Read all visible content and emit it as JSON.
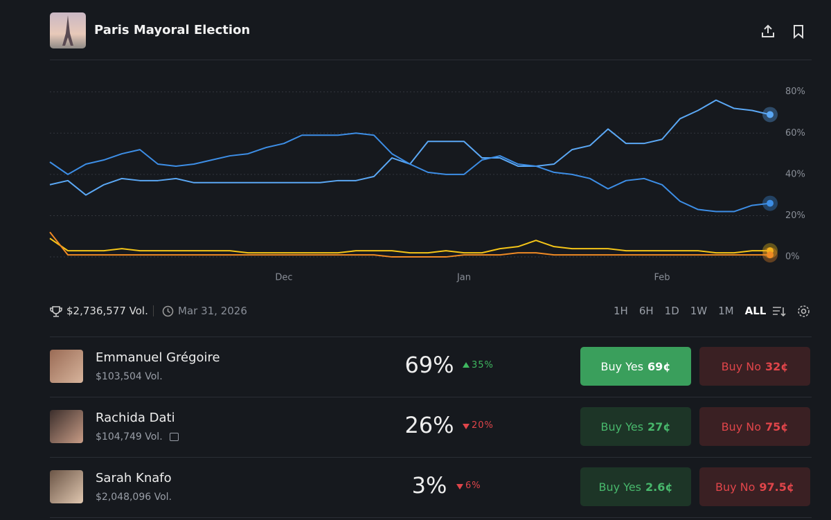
{
  "header": {
    "title": "Paris Mayoral Election"
  },
  "chart_data": {
    "type": "line",
    "categories": [
      null,
      null,
      null,
      null,
      null,
      null,
      null,
      null,
      null,
      null,
      null,
      null,
      null,
      "Dec",
      null,
      null,
      null,
      null,
      null,
      null,
      null,
      null,
      null,
      "Jan",
      null,
      null,
      null,
      null,
      null,
      null,
      null,
      null,
      null,
      null,
      "Feb",
      null,
      null,
      null,
      null,
      null,
      null
    ],
    "series": [
      {
        "color": "#5ba8f5",
        "values": [
          35,
          37,
          30,
          35,
          38,
          37,
          37,
          38,
          36,
          36,
          36,
          36,
          36,
          36,
          36,
          36,
          37,
          37,
          39,
          48,
          45,
          56,
          56,
          56,
          48,
          48,
          44,
          44,
          45,
          52,
          54,
          62,
          55,
          55,
          57,
          67,
          71,
          76,
          72,
          71,
          69
        ]
      },
      {
        "color": "#3d8ee6",
        "values": [
          46,
          40,
          45,
          47,
          50,
          52,
          45,
          44,
          45,
          47,
          49,
          50,
          53,
          55,
          59,
          59,
          59,
          60,
          59,
          50,
          45,
          41,
          40,
          40,
          47,
          49,
          45,
          44,
          41,
          40,
          38,
          33,
          37,
          38,
          35,
          27,
          23,
          22,
          22,
          25,
          26
        ]
      },
      {
        "color": "#f5c518",
        "values": [
          9,
          3,
          3,
          3,
          4,
          3,
          3,
          3,
          3,
          3,
          3,
          2,
          2,
          2,
          2,
          2,
          2,
          3,
          3,
          3,
          2,
          2,
          3,
          2,
          2,
          4,
          5,
          8,
          5,
          4,
          4,
          4,
          3,
          3,
          3,
          3,
          3,
          2,
          2,
          3,
          3
        ]
      },
      {
        "color": "#f08a24",
        "values": [
          12,
          1,
          1,
          1,
          1,
          1,
          1,
          1,
          1,
          1,
          1,
          1,
          1,
          1,
          1,
          1,
          1,
          1,
          1,
          0,
          0,
          0,
          0,
          1,
          1,
          1,
          2,
          2,
          1,
          1,
          1,
          1,
          1,
          1,
          1,
          1,
          1,
          1,
          1,
          1,
          1
        ]
      }
    ],
    "ylim": [
      -3,
      95
    ],
    "yticks": [
      {
        "value": 0,
        "label": "0%"
      },
      {
        "value": 20,
        "label": "20%"
      },
      {
        "value": 40,
        "label": "40%"
      },
      {
        "value": 60,
        "label": "60%"
      },
      {
        "value": 80,
        "label": "80%"
      }
    ],
    "grid": true
  },
  "stats": {
    "volume": "$2,736,577 Vol.",
    "end_date": "Mar 31, 2026"
  },
  "ranges": {
    "options": [
      "1H",
      "6H",
      "1D",
      "1W",
      "1M",
      "ALL"
    ],
    "active": 5
  },
  "markets": [
    {
      "name": "Emmanuel Grégoire",
      "volume": "$103,504 Vol.",
      "chance": "69%",
      "change": "35%",
      "direction": "up",
      "yes_label": "Buy Yes",
      "yes_price": "69¢",
      "no_label": "Buy No",
      "no_price": "32¢",
      "highlighted": true
    },
    {
      "name": "Rachida Dati",
      "volume": "$104,749 Vol.",
      "chance": "26%",
      "change": "20%",
      "direction": "down",
      "yes_label": "Buy Yes",
      "yes_price": "27¢",
      "no_label": "Buy No",
      "no_price": "75¢",
      "gift": true
    },
    {
      "name": "Sarah Knafo",
      "volume": "$2,048,096 Vol.",
      "chance": "3%",
      "change": "6%",
      "direction": "down",
      "yes_label": "Buy Yes",
      "yes_price": "2.6¢",
      "no_label": "Buy No",
      "no_price": "97.5¢"
    }
  ]
}
